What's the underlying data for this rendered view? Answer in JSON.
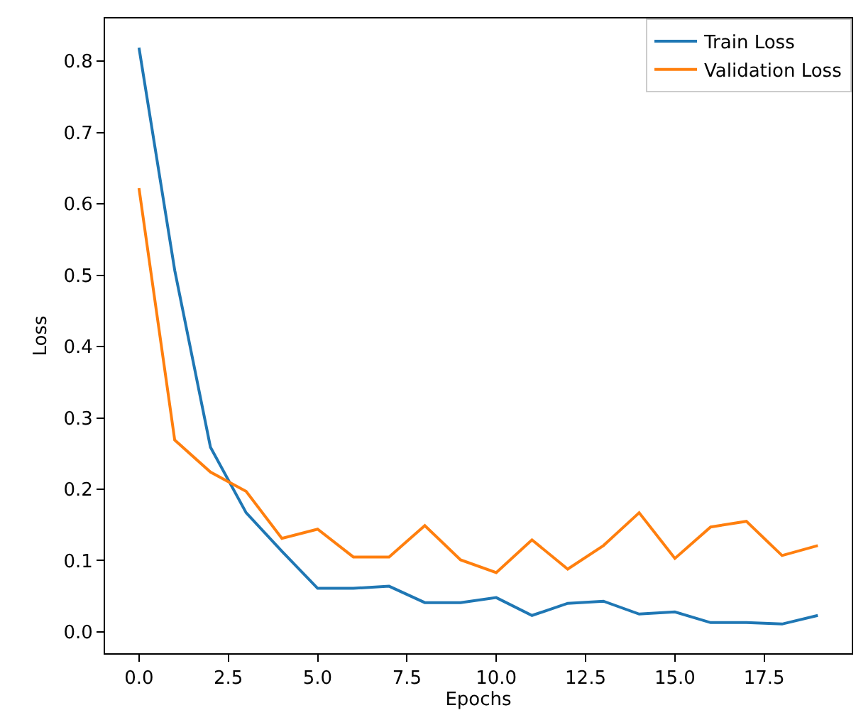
{
  "chart_data": {
    "type": "line",
    "xlabel": "Epochs",
    "ylabel": "Loss",
    "x": [
      0,
      1,
      2,
      3,
      4,
      5,
      6,
      7,
      8,
      9,
      10,
      11,
      12,
      13,
      14,
      15,
      16,
      17,
      18,
      19
    ],
    "series": [
      {
        "name": "Train Loss",
        "color": "#1f77b4",
        "values": [
          0.819,
          0.507,
          0.259,
          0.167,
          0.113,
          0.061,
          0.061,
          0.064,
          0.041,
          0.041,
          0.048,
          0.023,
          0.04,
          0.043,
          0.025,
          0.028,
          0.013,
          0.013,
          0.011,
          0.023
        ]
      },
      {
        "name": "Validation Loss",
        "color": "#ff7f0e",
        "values": [
          0.622,
          0.269,
          0.224,
          0.197,
          0.131,
          0.144,
          0.105,
          0.105,
          0.149,
          0.101,
          0.083,
          0.129,
          0.088,
          0.121,
          0.167,
          0.103,
          0.147,
          0.155,
          0.107,
          0.121
        ]
      }
    ],
    "xlim": [
      -0.95,
      19.95
    ],
    "xticks": [
      {
        "value": 0,
        "label": "0.0"
      },
      {
        "value": 2.5,
        "label": "2.5"
      },
      {
        "value": 5,
        "label": "5.0"
      },
      {
        "value": 7.5,
        "label": "7.5"
      },
      {
        "value": 10,
        "label": "10.0"
      },
      {
        "value": 12.5,
        "label": "12.5"
      },
      {
        "value": 15,
        "label": "15.0"
      },
      {
        "value": 17.5,
        "label": "17.5"
      }
    ],
    "ylim": [
      -0.03,
      0.86
    ],
    "yticks": [
      {
        "value": 0,
        "label": "0.0"
      },
      0.1,
      0.2,
      0.3,
      0.4,
      0.5,
      0.6,
      0.7,
      0.8
    ],
    "legend": "top right",
    "grid": false,
    "marker": "none",
    "line_style": "solid"
  }
}
